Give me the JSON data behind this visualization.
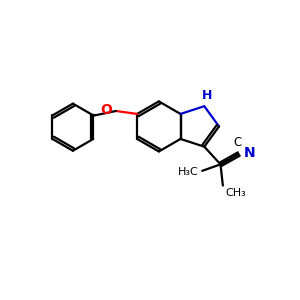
{
  "bg_color": "#ffffff",
  "bond_color": "#000000",
  "n_color": "#0000cd",
  "o_color": "#ff0000",
  "line_width": 1.6,
  "figsize": [
    3.0,
    3.0
  ],
  "dpi": 100,
  "xlim": [
    0,
    10
  ],
  "ylim": [
    0,
    10
  ]
}
